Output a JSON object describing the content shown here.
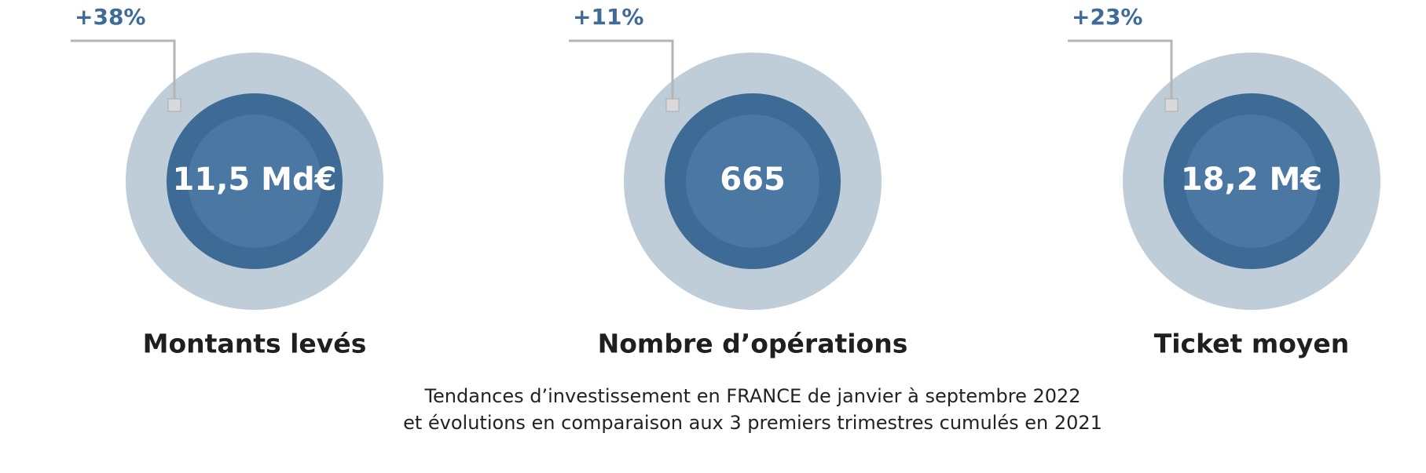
{
  "kpis": [
    {
      "change": "+38%",
      "value": "11,5 Md€",
      "label": "Montants levés"
    },
    {
      "change": "+11%",
      "value": "665",
      "label": "Nombre d’opérations"
    },
    {
      "change": "+23%",
      "value": "18,2 M€",
      "label": "Ticket moyen"
    }
  ],
  "caption": [
    "Tendances d’investissement en FRANCE de janvier à septembre 2022",
    "et évolutions en comparaison aux 3 premiers trimestres cumulés en 2021"
  ]
}
